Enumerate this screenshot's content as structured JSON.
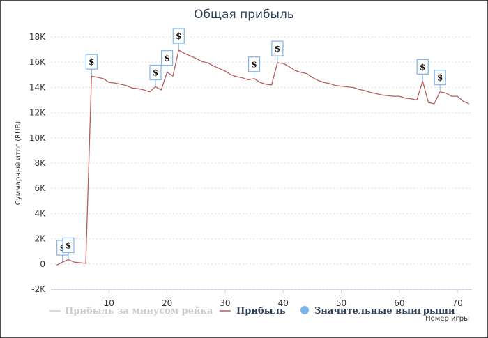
{
  "chart_data": {
    "type": "line",
    "title": "Общая прибыль",
    "xlabel": "Номер игры",
    "ylabel": "Суммарный итог (RUB)",
    "xlim": [
      0,
      72.5
    ],
    "ylim": [
      -2000,
      18000
    ],
    "x_ticks": [
      10,
      20,
      30,
      40,
      50,
      60,
      70
    ],
    "y_ticks": [
      -2000,
      0,
      2000,
      4000,
      6000,
      8000,
      10000,
      12000,
      14000,
      16000,
      18000
    ],
    "y_tick_labels": [
      "-2K",
      "0",
      "2K",
      "4K",
      "6K",
      "8K",
      "10K",
      "12K",
      "14K",
      "16K",
      "18K"
    ],
    "x_tick_labels": [
      "10",
      "20",
      "30",
      "40",
      "50",
      "60",
      "70"
    ],
    "grid": true,
    "legend_position": "bottom",
    "series": [
      {
        "name": "Прибыль за минусом рейка",
        "color": "#cccccc",
        "hidden": true,
        "values": []
      },
      {
        "name": "Прибыль",
        "color": "#b85c5c",
        "x": [
          1,
          2,
          3,
          4,
          5,
          6,
          7,
          8,
          9,
          10,
          11,
          12,
          13,
          14,
          15,
          16,
          17,
          18,
          19,
          20,
          21,
          22,
          23,
          24,
          25,
          26,
          27,
          28,
          29,
          30,
          31,
          32,
          33,
          34,
          35,
          36,
          37,
          38,
          39,
          40,
          41,
          42,
          43,
          44,
          45,
          46,
          47,
          48,
          49,
          50,
          51,
          52,
          53,
          54,
          55,
          56,
          57,
          58,
          59,
          60,
          61,
          62,
          63,
          64,
          65,
          66,
          67,
          68,
          69,
          70,
          71,
          72
        ],
        "values": [
          -100,
          150,
          350,
          150,
          100,
          50,
          14900,
          14800,
          14700,
          14400,
          14350,
          14250,
          14150,
          13950,
          13900,
          13800,
          13650,
          14050,
          13800,
          15200,
          14900,
          16950,
          16700,
          16500,
          16300,
          16050,
          15950,
          15700,
          15500,
          15300,
          15000,
          14850,
          14750,
          14600,
          14700,
          14400,
          14250,
          14200,
          15950,
          15900,
          15650,
          15350,
          15200,
          15100,
          14800,
          14550,
          14400,
          14300,
          14150,
          14100,
          14050,
          14000,
          13850,
          13750,
          13600,
          13500,
          13400,
          13350,
          13300,
          13300,
          13150,
          13100,
          13000,
          14500,
          12800,
          12700,
          13650,
          13550,
          13300,
          13300,
          12900,
          12700
        ]
      },
      {
        "name": "Значительные выигрыши",
        "color": "#7cb5ec",
        "marker": "$",
        "x": [
          2,
          3,
          7,
          18,
          20,
          22,
          35,
          39,
          64,
          67
        ],
        "values": [
          150,
          350,
          14900,
          14050,
          15200,
          16950,
          14700,
          15950,
          14500,
          13650
        ]
      }
    ]
  }
}
